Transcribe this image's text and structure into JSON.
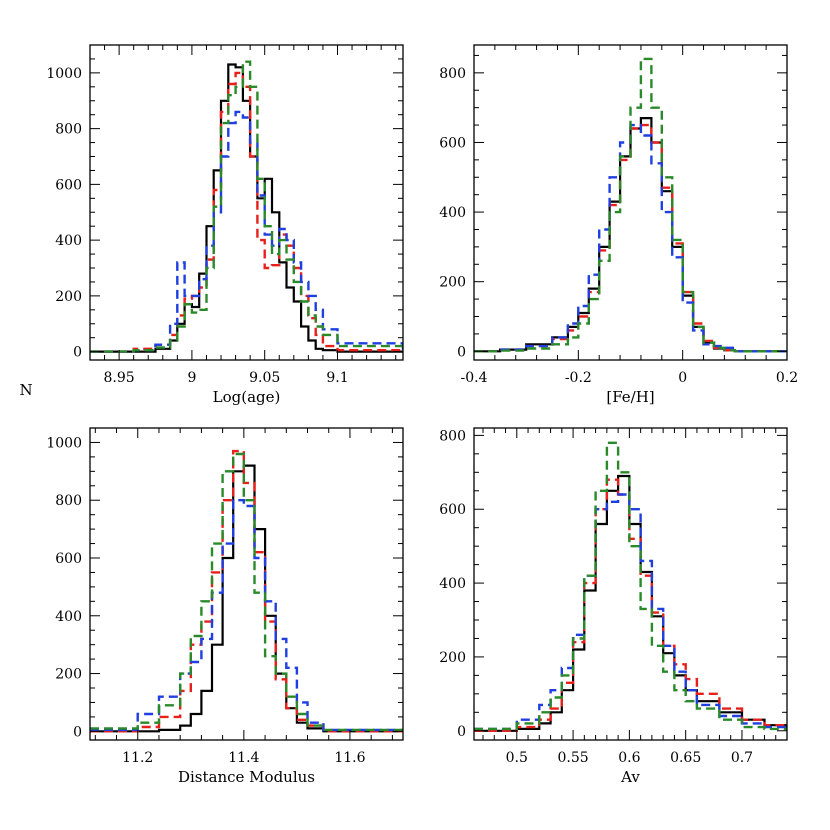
{
  "figure": {
    "shared_ylabel": "N"
  },
  "chart_data": [
    {
      "type": "line",
      "subtype": "step-histogram",
      "title": "",
      "xlabel": "Log(age)",
      "ylabel": "N",
      "xlim": [
        8.93,
        9.145
      ],
      "ylim": [
        -30,
        1100
      ],
      "xticks": [
        8.95,
        9,
        9.05,
        9.1
      ],
      "xtick_labels": [
        "8.95",
        "9",
        "9.05",
        "9.1"
      ],
      "yticks": [
        0,
        200,
        400,
        600,
        800,
        1000
      ],
      "ytick_labels": [
        "0",
        "200",
        "400",
        "600",
        "800",
        "1000"
      ],
      "grid": false,
      "series": [
        {
          "color": "#000000",
          "style": "solid",
          "x": [
            8.93,
            8.96,
            8.975,
            8.985,
            8.99,
            8.995,
            9.0,
            9.005,
            9.01,
            9.015,
            9.02,
            9.025,
            9.03,
            9.035,
            9.04,
            9.045,
            9.05,
            9.055,
            9.06,
            9.065,
            9.07,
            9.075,
            9.08,
            9.085,
            9.09,
            9.1,
            9.145
          ],
          "y": [
            0,
            0,
            10,
            40,
            100,
            170,
            160,
            280,
            450,
            650,
            900,
            1030,
            1020,
            900,
            700,
            550,
            620,
            500,
            320,
            230,
            180,
            90,
            40,
            10,
            5,
            0,
            0
          ]
        },
        {
          "color": "#e8201c",
          "style": "dashed",
          "x": [
            8.93,
            8.96,
            8.975,
            8.985,
            8.99,
            8.995,
            9.0,
            9.005,
            9.01,
            9.015,
            9.02,
            9.025,
            9.03,
            9.035,
            9.04,
            9.045,
            9.05,
            9.055,
            9.06,
            9.065,
            9.07,
            9.075,
            9.08,
            9.085,
            9.09,
            9.1,
            9.145
          ],
          "y": [
            0,
            10,
            25,
            60,
            130,
            190,
            200,
            230,
            330,
            580,
            860,
            960,
            1000,
            950,
            700,
            400,
            300,
            310,
            420,
            380,
            300,
            200,
            120,
            60,
            20,
            5,
            0
          ]
        },
        {
          "color": "#1f3fe0",
          "style": "dashed",
          "x": [
            8.93,
            8.96,
            8.975,
            8.985,
            8.99,
            8.995,
            9.0,
            9.005,
            9.01,
            9.015,
            9.02,
            9.025,
            9.03,
            9.035,
            9.04,
            9.045,
            9.05,
            9.055,
            9.06,
            9.065,
            9.07,
            9.075,
            9.08,
            9.085,
            9.09,
            9.1,
            9.145
          ],
          "y": [
            0,
            5,
            25,
            100,
            320,
            200,
            200,
            260,
            380,
            500,
            700,
            820,
            860,
            840,
            750,
            560,
            420,
            380,
            440,
            400,
            320,
            250,
            200,
            150,
            80,
            30,
            0
          ]
        },
        {
          "color": "#2a8a2a",
          "style": "dashed",
          "x": [
            8.93,
            8.96,
            8.975,
            8.985,
            8.99,
            8.995,
            9.0,
            9.005,
            9.01,
            9.015,
            9.02,
            9.025,
            9.03,
            9.035,
            9.04,
            9.045,
            9.05,
            9.055,
            9.06,
            9.065,
            9.07,
            9.075,
            9.08,
            9.085,
            9.09,
            9.1,
            9.145
          ],
          "y": [
            0,
            5,
            15,
            40,
            90,
            170,
            140,
            150,
            300,
            520,
            820,
            920,
            950,
            1040,
            950,
            620,
            450,
            350,
            400,
            330,
            250,
            180,
            130,
            90,
            60,
            20,
            0
          ]
        }
      ]
    },
    {
      "type": "line",
      "subtype": "step-histogram",
      "title": "",
      "xlabel": "[Fe/H]",
      "ylabel": "",
      "xlim": [
        -0.4,
        0.2
      ],
      "ylim": [
        -25,
        880
      ],
      "xticks": [
        -0.4,
        -0.2,
        0,
        0.2
      ],
      "xtick_labels": [
        "-0.4",
        "-0.2",
        "0",
        "0.2"
      ],
      "yticks": [
        0,
        200,
        400,
        600,
        800
      ],
      "ytick_labels": [
        "0",
        "200",
        "400",
        "600",
        "800"
      ],
      "grid": false,
      "series": [
        {
          "color": "#000000",
          "style": "solid",
          "x": [
            -0.4,
            -0.35,
            -0.3,
            -0.25,
            -0.22,
            -0.2,
            -0.18,
            -0.16,
            -0.14,
            -0.12,
            -0.1,
            -0.08,
            -0.06,
            -0.04,
            -0.02,
            0.0,
            0.02,
            0.04,
            0.06,
            0.08,
            0.1,
            0.2
          ],
          "y": [
            0,
            5,
            20,
            40,
            70,
            110,
            180,
            300,
            430,
            560,
            640,
            670,
            600,
            460,
            300,
            160,
            70,
            25,
            8,
            3,
            0,
            0
          ]
        },
        {
          "color": "#e8201c",
          "style": "dashed",
          "x": [
            -0.4,
            -0.35,
            -0.3,
            -0.25,
            -0.22,
            -0.2,
            -0.18,
            -0.16,
            -0.14,
            -0.12,
            -0.1,
            -0.08,
            -0.06,
            -0.04,
            -0.02,
            0.0,
            0.02,
            0.04,
            0.06,
            0.08,
            0.1,
            0.2
          ],
          "y": [
            0,
            5,
            15,
            35,
            60,
            100,
            170,
            290,
            420,
            550,
            640,
            650,
            600,
            470,
            310,
            170,
            80,
            30,
            10,
            3,
            0,
            0
          ]
        },
        {
          "color": "#1f3fe0",
          "style": "dashed",
          "x": [
            -0.4,
            -0.35,
            -0.3,
            -0.25,
            -0.22,
            -0.2,
            -0.18,
            -0.16,
            -0.14,
            -0.12,
            -0.1,
            -0.08,
            -0.06,
            -0.04,
            -0.02,
            0.0,
            0.02,
            0.04,
            0.06,
            0.08,
            0.1,
            0.2
          ],
          "y": [
            0,
            5,
            15,
            40,
            80,
            130,
            220,
            350,
            500,
            600,
            650,
            620,
            540,
            400,
            270,
            140,
            60,
            20,
            15,
            10,
            0,
            0
          ]
        },
        {
          "color": "#2a8a2a",
          "style": "dashed",
          "x": [
            -0.4,
            -0.35,
            -0.3,
            -0.25,
            -0.22,
            -0.2,
            -0.18,
            -0.16,
            -0.14,
            -0.12,
            -0.1,
            -0.08,
            -0.06,
            -0.04,
            -0.02,
            0.0,
            0.02,
            0.04,
            0.06,
            0.08,
            0.1,
            0.2
          ],
          "y": [
            0,
            2,
            8,
            20,
            40,
            80,
            150,
            260,
            400,
            560,
            700,
            840,
            700,
            500,
            320,
            170,
            70,
            25,
            10,
            3,
            0,
            0
          ]
        }
      ]
    },
    {
      "type": "line",
      "subtype": "step-histogram",
      "title": "",
      "xlabel": "Distance Modulus",
      "ylabel": "N",
      "xlim": [
        11.11,
        11.7
      ],
      "ylim": [
        -30,
        1050
      ],
      "xticks": [
        11.2,
        11.4,
        11.6
      ],
      "xtick_labels": [
        "11.2",
        "11.4",
        "11.6"
      ],
      "yticks": [
        0,
        200,
        400,
        600,
        800,
        1000
      ],
      "ytick_labels": [
        "0",
        "200",
        "400",
        "600",
        "800",
        "1000"
      ],
      "grid": false,
      "series": [
        {
          "color": "#000000",
          "style": "solid",
          "x": [
            11.11,
            11.2,
            11.24,
            11.28,
            11.3,
            11.32,
            11.34,
            11.36,
            11.38,
            11.4,
            11.42,
            11.44,
            11.46,
            11.48,
            11.5,
            11.52,
            11.55,
            11.7
          ],
          "y": [
            0,
            0,
            5,
            20,
            60,
            140,
            300,
            600,
            900,
            920,
            700,
            400,
            200,
            80,
            30,
            10,
            0,
            0
          ]
        },
        {
          "color": "#e8201c",
          "style": "dashed",
          "x": [
            11.11,
            11.2,
            11.24,
            11.28,
            11.3,
            11.32,
            11.34,
            11.36,
            11.38,
            11.4,
            11.42,
            11.44,
            11.46,
            11.48,
            11.5,
            11.52,
            11.55,
            11.7
          ],
          "y": [
            0,
            15,
            50,
            140,
            300,
            380,
            550,
            800,
            970,
            860,
            620,
            380,
            180,
            80,
            40,
            20,
            0,
            0
          ]
        },
        {
          "color": "#1f3fe0",
          "style": "dashed",
          "x": [
            11.11,
            11.2,
            11.24,
            11.28,
            11.3,
            11.32,
            11.34,
            11.36,
            11.38,
            11.4,
            11.42,
            11.44,
            11.46,
            11.48,
            11.5,
            11.52,
            11.55,
            11.7
          ],
          "y": [
            5,
            60,
            120,
            200,
            240,
            320,
            480,
            650,
            800,
            780,
            600,
            450,
            320,
            220,
            100,
            30,
            5,
            0
          ]
        },
        {
          "color": "#2a8a2a",
          "style": "dashed",
          "x": [
            11.11,
            11.2,
            11.24,
            11.28,
            11.3,
            11.32,
            11.34,
            11.36,
            11.38,
            11.4,
            11.42,
            11.44,
            11.46,
            11.48,
            11.5,
            11.52,
            11.55,
            11.7
          ],
          "y": [
            10,
            30,
            90,
            200,
            330,
            450,
            650,
            900,
            960,
            800,
            480,
            260,
            200,
            120,
            60,
            20,
            5,
            0
          ]
        }
      ]
    },
    {
      "type": "line",
      "subtype": "step-histogram",
      "title": "",
      "xlabel": "Av",
      "ylabel": "",
      "xlim": [
        0.462,
        0.74
      ],
      "ylim": [
        -25,
        820
      ],
      "xticks": [
        0.5,
        0.55,
        0.6,
        0.65,
        0.7
      ],
      "xtick_labels": [
        "0.5",
        "0.55",
        "0.6",
        "0.65",
        "0.7"
      ],
      "yticks": [
        0,
        200,
        400,
        600,
        800
      ],
      "ytick_labels": [
        "0",
        "200",
        "400",
        "600",
        "800"
      ],
      "grid": false,
      "series": [
        {
          "color": "#000000",
          "style": "solid",
          "x": [
            0.462,
            0.5,
            0.52,
            0.53,
            0.54,
            0.55,
            0.56,
            0.57,
            0.58,
            0.59,
            0.6,
            0.61,
            0.62,
            0.63,
            0.64,
            0.65,
            0.66,
            0.68,
            0.7,
            0.72,
            0.74
          ],
          "y": [
            0,
            5,
            20,
            50,
            110,
            220,
            380,
            560,
            650,
            690,
            560,
            430,
            310,
            210,
            150,
            110,
            80,
            50,
            30,
            15,
            5
          ]
        },
        {
          "color": "#e8201c",
          "style": "dashed",
          "x": [
            0.462,
            0.5,
            0.52,
            0.53,
            0.54,
            0.55,
            0.56,
            0.57,
            0.58,
            0.59,
            0.6,
            0.61,
            0.62,
            0.63,
            0.64,
            0.65,
            0.66,
            0.68,
            0.7,
            0.72,
            0.74
          ],
          "y": [
            0,
            10,
            30,
            60,
            130,
            240,
            400,
            600,
            680,
            640,
            520,
            420,
            320,
            230,
            180,
            140,
            100,
            60,
            30,
            15,
            5
          ]
        },
        {
          "color": "#1f3fe0",
          "style": "dashed",
          "x": [
            0.462,
            0.5,
            0.52,
            0.53,
            0.54,
            0.55,
            0.56,
            0.57,
            0.58,
            0.59,
            0.6,
            0.61,
            0.62,
            0.63,
            0.64,
            0.65,
            0.66,
            0.68,
            0.7,
            0.72,
            0.74
          ],
          "y": [
            5,
            30,
            70,
            110,
            170,
            260,
            420,
            600,
            620,
            640,
            600,
            460,
            330,
            230,
            160,
            110,
            70,
            40,
            20,
            10,
            2
          ]
        },
        {
          "color": "#2a8a2a",
          "style": "dashed",
          "x": [
            0.462,
            0.5,
            0.52,
            0.53,
            0.54,
            0.55,
            0.56,
            0.57,
            0.58,
            0.59,
            0.6,
            0.61,
            0.62,
            0.63,
            0.64,
            0.65,
            0.66,
            0.68,
            0.7,
            0.72,
            0.74
          ],
          "y": [
            5,
            20,
            50,
            90,
            150,
            250,
            420,
            650,
            780,
            700,
            500,
            330,
            230,
            160,
            110,
            80,
            60,
            30,
            10,
            5,
            0
          ]
        }
      ]
    }
  ]
}
